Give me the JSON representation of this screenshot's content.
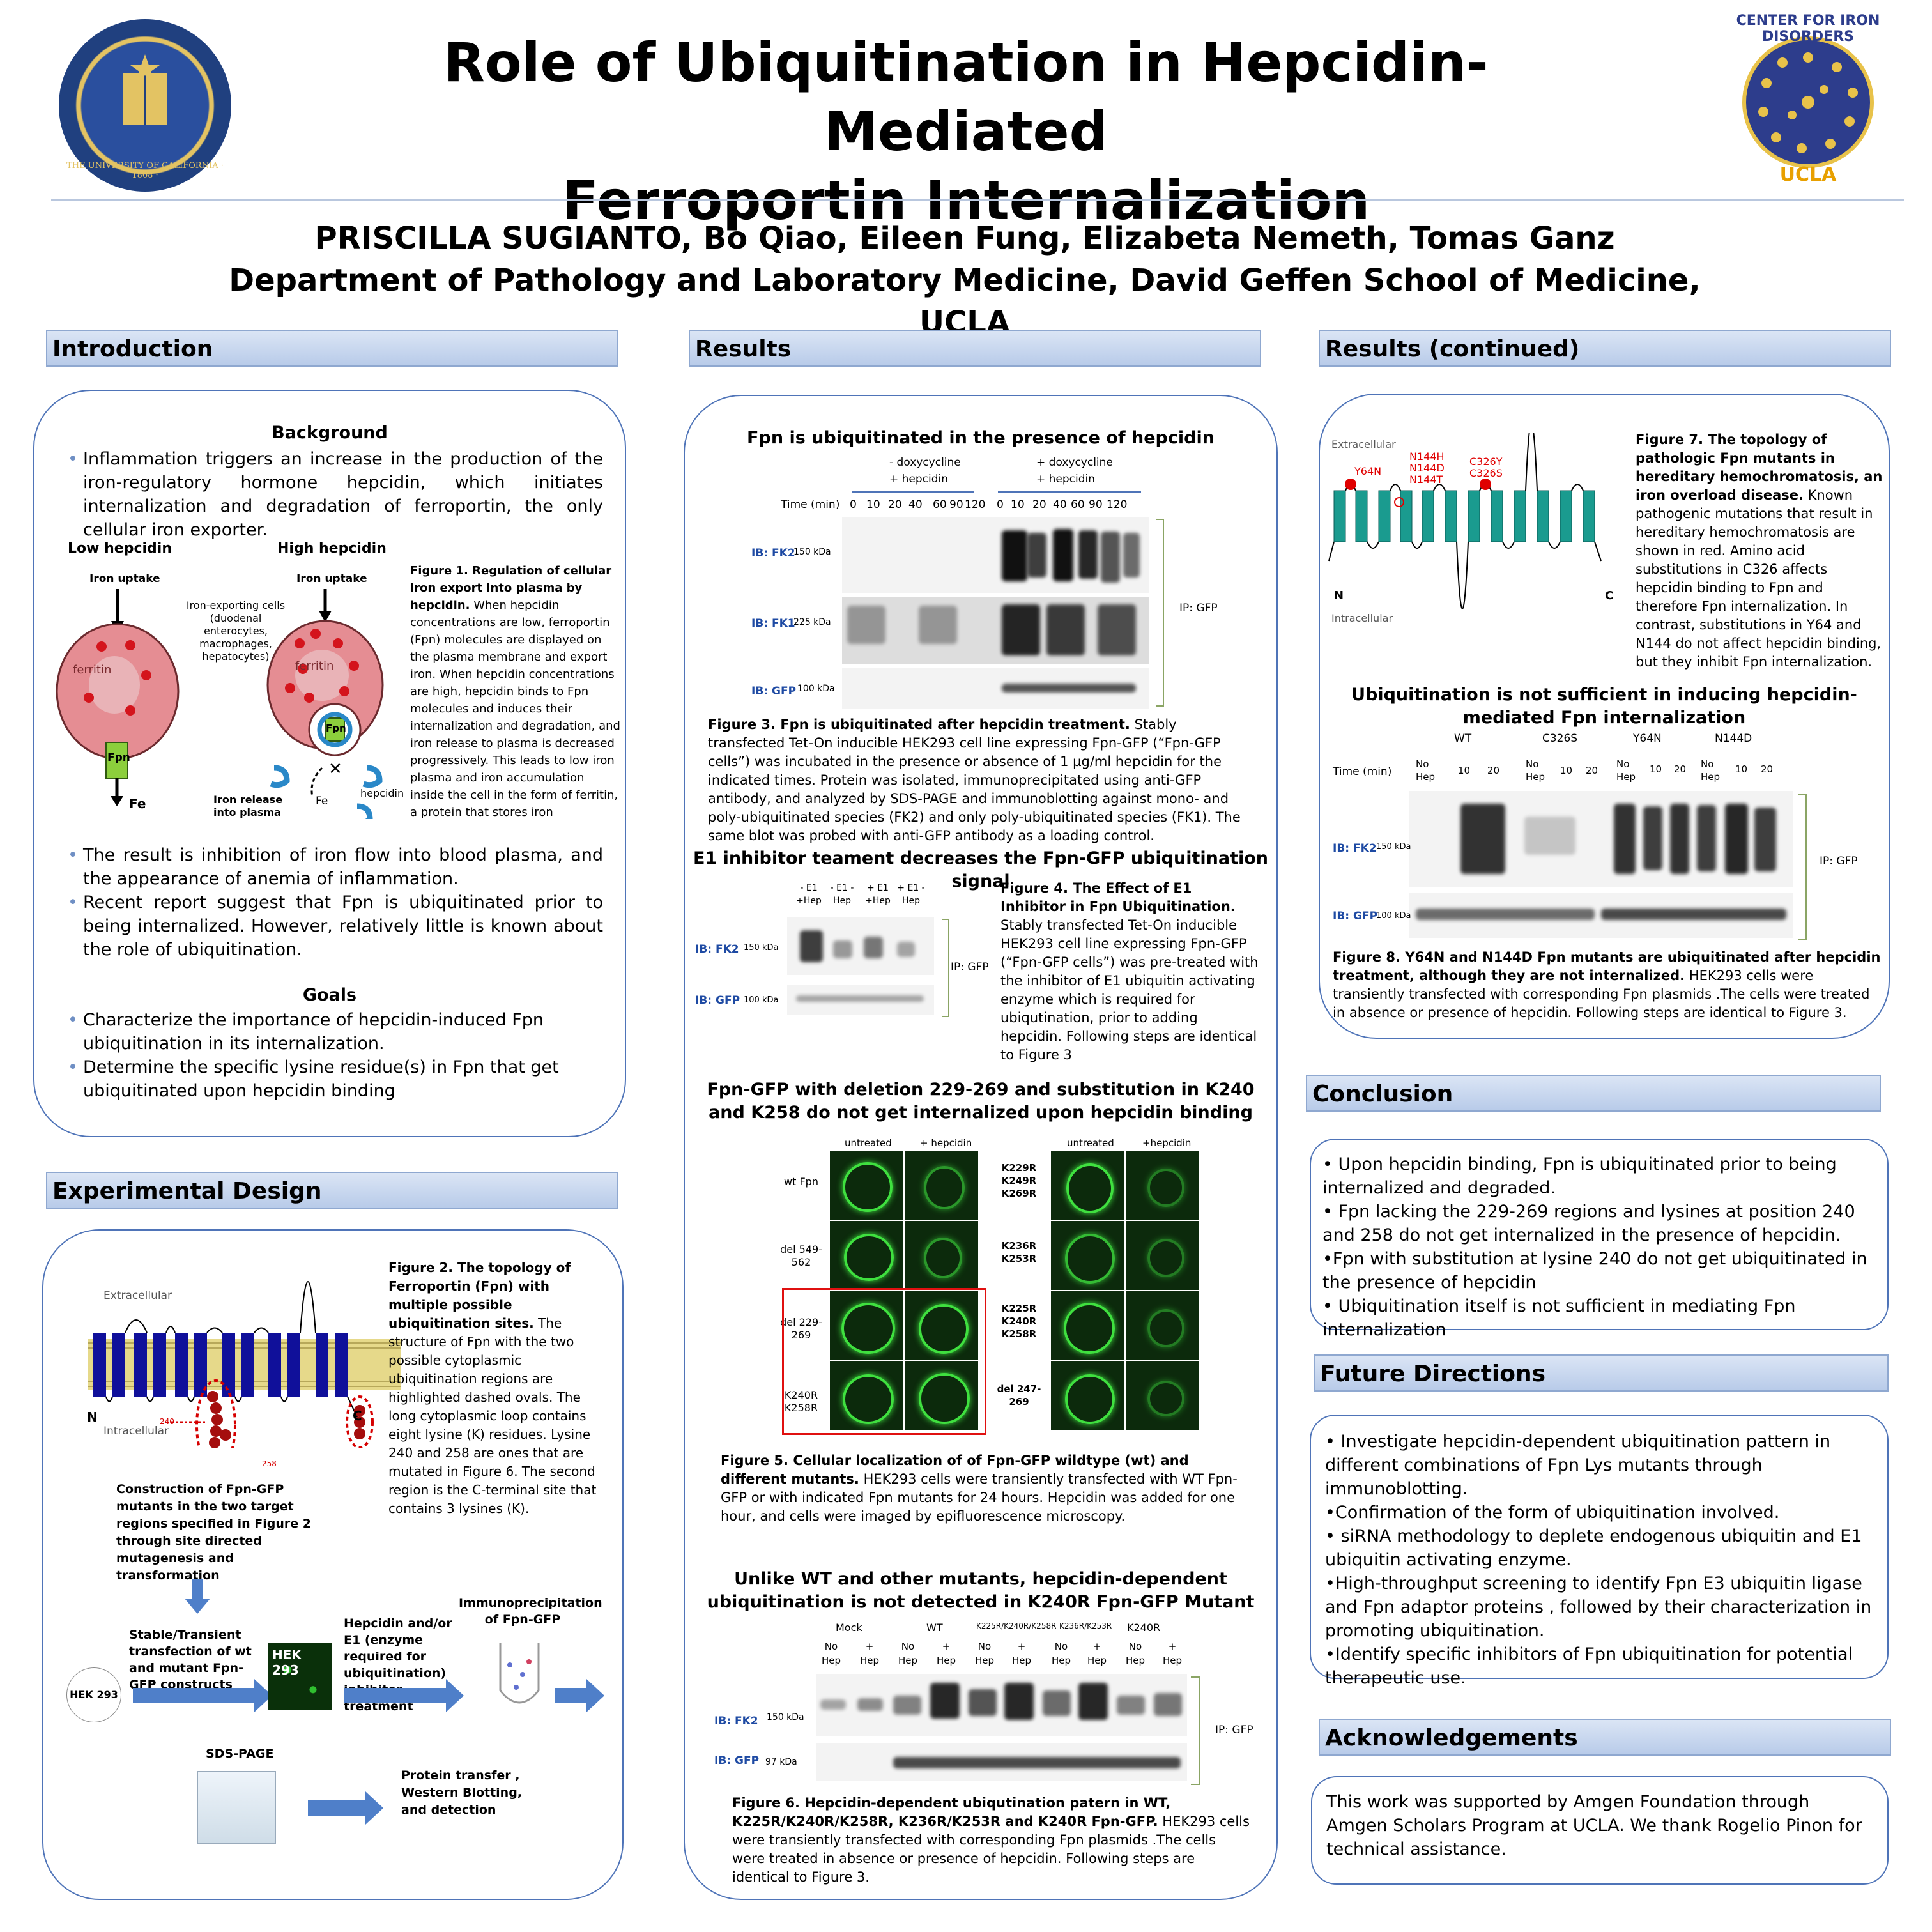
{
  "header": {
    "title_line1": "Role of Ubiquitination in Hepcidin-Mediated",
    "title_line2": "Ferroportin Internalization",
    "authors": "PRISCILLA SUGIANTO, Bo Qiao, Eileen Fung, Elizabeta Nemeth, Tomas Ganz",
    "affiliation": "Department of Pathology and Laboratory Medicine, David Geffen School of Medicine, UCLA",
    "logo_left_text": "THE UNIVERSITY OF CALIFORNIA · 1868 ·",
    "logo_right_text_top": "CENTER FOR IRON DISORDERS",
    "logo_right_text_bottom": "UCLA"
  },
  "sections": {
    "introduction": "Introduction",
    "experimental_design": "Experimental Design",
    "results": "Results",
    "results_continued": "Results (continued)",
    "conclusion": "Conclusion",
    "future_directions": "Future Directions",
    "acknowledgements": "Acknowledgements"
  },
  "intro": {
    "background_heading": "Background",
    "bullet1": "Inflammation triggers an increase in the production of the iron-regulatory hormone hepcidin, which initiates internalization and degradation of ferroportin, the only cellular iron exporter.",
    "fig1_low": "Low hepcidin",
    "fig1_high": "High hepcidin",
    "fig1_iron_uptake": "Iron uptake",
    "fig1_cells": "Iron-exporting cells (duodenal enterocytes, macrophages, hepatocytes)",
    "fig1_ferritin": "ferritin",
    "fig1_fpn": "Fpn",
    "fig1_fe": "Fe",
    "fig1_release": "Iron release into plasma",
    "fig1_hepcidin": "hepcidin",
    "fig1_cap_title": "Figure 1. Regulation of cellular iron export into plasma by hepcidin.",
    "fig1_cap_body": "When hepcidin concentrations are low, ferroportin (Fpn) molecules are displayed on the plasma membrane and export iron. When hepcidin concentrations are high, hepcidin binds to Fpn molecules and induces their internalization and degradation, and iron release to plasma is decreased progressively. This leads to low iron plasma and iron accumulation inside the cell in the form of ferritin, a protein that stores iron",
    "bullet2": "The result is inhibition of iron flow into blood plasma, and the appearance of anemia of inflammation.",
    "bullet3": "Recent report suggest that Fpn is ubiquitinated prior to being internalized. However, relatively little is known about the role of ubiquitination.",
    "goals_heading": "Goals",
    "goal1": "Characterize the importance of hepcidin-induced Fpn ubiquitination in its internalization.",
    "goal2": "Determine the specific lysine residue(s) in Fpn that get ubiquitinated upon hepcidin binding"
  },
  "design": {
    "extracellular": "Extracellular",
    "intracellular": "Intracellular",
    "n": "N",
    "c": "C",
    "k240": "240",
    "k258": "258",
    "fig2_cap_title": "Figure 2. The topology of Ferroportin (Fpn) with  multiple possible ubiquitination sites.",
    "fig2_cap_body": "The structure of Fpn with the two possible cytoplasmic ubiquitination regions are highlighted dashed ovals. The long cytoplasmic loop contains eight lysine (K) residues. Lysine 240 and 258 are ones that are mutated in Figure 6. The second region is the C-terminal site that contains 3 lysines (K).",
    "step_construct": "Construction of Fpn-GFP mutants in the two target regions specified in Figure 2 through site directed mutagenesis and transformation",
    "step_transfect": "Stable/Transient transfection of wt and mutant Fpn-GFP constructs",
    "hek293": "HEK 293",
    "step_hepcidin": "Hepcidin and/or E1 (enzyme required for ubiquitination) inhibitor treatment",
    "step_ip": "Immunoprecipitation of Fpn-GFP",
    "step_sds": "SDS-PAGE",
    "step_transfer": "Protein transfer , Western Blotting, and detection"
  },
  "results": {
    "fig3_heading": "Fpn is ubiquitinated in the presence of hepcidin",
    "fig3_minus_dox": "- doxycycline",
    "fig3_plus_dox": "+ doxycycline",
    "fig3_plus_hep": "+ hepcidin",
    "fig3_time": "Time (min)",
    "fig3_times": [
      "0",
      "10",
      "20",
      "40",
      "60",
      "90",
      "120",
      "0",
      "10",
      "20",
      "40",
      "60",
      "90",
      "120"
    ],
    "fig3_ib_fk2": "IB: FK2",
    "fig3_ib_fk1": "IB: FK1",
    "fig3_ib_gfp": "IB: GFP",
    "fig3_150": "150 kDa",
    "fig3_225": "225 kDa",
    "fig3_100": "100 kDa",
    "fig3_ip": "IP: GFP",
    "fig3_cap_title": "Figure 3. Fpn is ubiquitinated after hepcidin treatment.",
    "fig3_cap_body": "Stably transfected Tet-On inducible HEK293 cell line expressing Fpn-GFP (“Fpn-GFP cells”) was incubated in the presence or absence of 1 µg/ml hepcidin for the indicated times. Protein was isolated, immunoprecipitated using anti-GFP antibody, and analyzed by SDS-PAGE and immunoblotting against mono- and poly-ubiquitinated species (FK2) and only poly-ubiquitinated species (FK1). The same blot was probed with anti-GFP antibody as a loading control.",
    "fig4_heading": "E1 inhibitor teament decreases the Fpn-GFP ubiquitination signal",
    "fig4_lanes": [
      "- E1 +Hep",
      "- E1 -Hep",
      "+ E1 +Hep",
      "+ E1 -Hep"
    ],
    "fig4_ib_fk2": "IB: FK2",
    "fig4_ib_gfp": "IB: GFP",
    "fig4_150": "150 kDa",
    "fig4_100": "100 kDa",
    "fig4_ip": "IP: GFP",
    "fig4_cap_title": "Figure 4. The Effect of E1 Inhibitor in Fpn Ubiquitination.",
    "fig4_cap_body": "Stably transfected Tet-On inducible HEK293 cell line expressing Fpn-GFP (“Fpn-GFP cells”) was pre-treated with the inhibitor of E1 ubiquitin activating enzyme which is required for ubiqutination, prior to adding hepcidin. Following steps are identical to Figure 3",
    "fig5_heading": "Fpn-GFP with deletion 229-269 and substitution in K240 and K258 do not get internalized upon hepcidin binding",
    "fig5_untreated": "untreated",
    "fig5_hepcidin": "+ hepcidin",
    "fig5_hepcidin2": "+hepcidin",
    "fig5_rows_left": [
      "wt Fpn",
      "del 549-562",
      "del 229-269",
      "K240R K258R"
    ],
    "fig5_rows_right": [
      "K229R K249R K269R",
      "K236R K253R",
      "K225R K240R K258R",
      "del 247-269"
    ],
    "fig5_cap_title": "Figure 5. Cellular localization of of Fpn-GFP wildtype (wt) and different mutants.",
    "fig5_cap_body": "HEK293 cells were transiently transfected with WT Fpn-GFP or with indicated Fpn mutants for 24 hours. Hepcidin was added for one hour, and cells were imaged by epifluorescence microscopy.",
    "fig6_heading": "Unlike WT and other mutants, hepcidin-dependent ubiquitination is not detected in K240R Fpn-GFP Mutant",
    "fig6_groups": [
      "Mock",
      "WT",
      "K225R/K240R/K258R",
      "K236R/K253R",
      "K240R"
    ],
    "fig6_no_hep": "No Hep",
    "fig6_plus_hep": "+ Hep",
    "fig6_ib_fk2": "IB: FK2",
    "fig6_ib_gfp": "IB: GFP",
    "fig6_150": "150 kDa",
    "fig6_97": "97 kDa",
    "fig6_ip": "IP: GFP",
    "fig6_cap_title": "Figure 6. Hepcidin-dependent ubiqutination patern in WT, K225R/K240R/K258R, K236R/K253R and K240R Fpn-GFP.",
    "fig6_cap_body": "HEK293 cells were transiently transfected with corresponding Fpn plasmids .The cells were treated in absence or presence of hepcidin. Following steps are identical to Figure 3."
  },
  "results_cont": {
    "extracellular": "Extracellular",
    "intracellular": "Intracellular",
    "y64n": "Y64N",
    "n144": "N144H N144D N144T",
    "c326": "C326Y C326S",
    "n": "N",
    "c": "C",
    "fig7_cap_title": "Figure 7. The topology of pathologic Fpn mutants in hereditary hemochromatosis, an iron overload disease.",
    "fig7_cap_body": "Known pathogenic mutations that result in hereditary hemochromatosis are shown in red. Amino acid substitutions in C326 affects hepcidin binding to Fpn and therefore Fpn internalization. In contrast, substitutions in Y64 and N144 do not affect hepcidin binding, but they inhibit Fpn internalization.",
    "fig8_heading": "Ubiquitination is not sufficient in inducing hepcidin-mediated Fpn internalization",
    "fig8_groups": [
      "WT",
      "C326S",
      "Y64N",
      "N144D"
    ],
    "fig8_no_hep": "No Hep",
    "fig8_10": "10",
    "fig8_20": "20",
    "fig8_time": "Time (min)",
    "fig8_ib_fk2": "IB: FK2",
    "fig8_ib_gfp": "IB: GFP",
    "fig8_150": "150 kDa",
    "fig8_100": "100 kDa",
    "fig8_ip": "IP: GFP",
    "fig8_cap_title": "Figure 8. Y64N and N144D Fpn mutants are ubiquitinated after hepcidin treatment, although they are not internalized.",
    "fig8_cap_body": "HEK293 cells were transiently transfected with corresponding Fpn plasmids .The cells were treated in absence or presence of hepcidin. Following steps are identical to Figure 3."
  },
  "conclusion": [
    "• Upon hepcidin binding, Fpn is ubiquitinated prior to being internalized and degraded.",
    "• Fpn lacking the 229-269 regions and lysines at position 240 and 258 do not get internalized in the presence of hepcidin.",
    "•Fpn with substitution at lysine 240 do not get ubiquitinated in the presence of hepcidin",
    "• Ubiquitination itself is not sufficient in mediating Fpn internalization"
  ],
  "future": [
    "• Investigate hepcidin-dependent ubiquitination pattern in different combinations of Fpn Lys mutants through immunoblotting.",
    "•Confirmation of the form of ubiquitination involved.",
    "• siRNA methodology to deplete endogenous ubiquitin and E1 ubiquitin activating enzyme.",
    "•High-throughput screening to identify Fpn E3 ubiquitin ligase and Fpn adaptor proteins , followed by their characterization in promoting ubiquitination.",
    "•Identify specific inhibitors of Fpn ubiquitination for potential therapeutic use."
  ],
  "acknowledgements": "This work was supported by Amgen Foundation through Amgen Scholars Program at UCLA. We thank Rogelio Pinon for technical assistance.",
  "colors": {
    "section_border": "#4f74b8",
    "heading_fill": "#c9d8ef",
    "helix_teal": "#1a9b8f",
    "helix_blue": "#12129a",
    "gfp_green": "#3fe03f",
    "mutation_red": "#e00000"
  }
}
